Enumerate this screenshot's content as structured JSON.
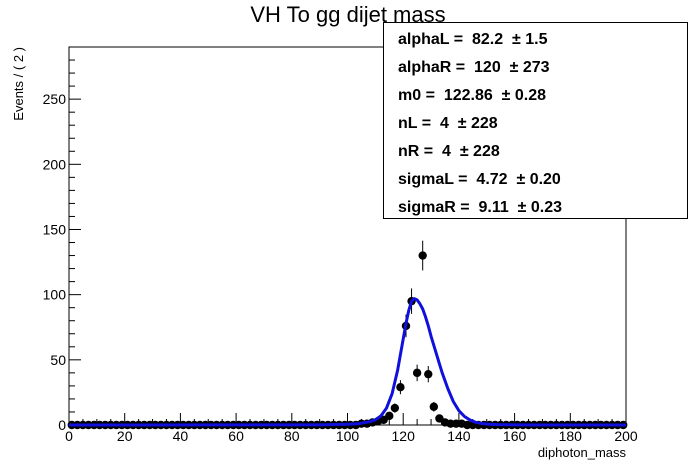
{
  "chart_data": {
    "type": "scatter",
    "title": "VH To gg dijet mass",
    "xlabel": "diphoton_mass",
    "ylabel": "Events / ( 2 )",
    "xlim": [
      0,
      200
    ],
    "ylim": [
      0,
      290
    ],
    "x_ticks": [
      "0",
      "20",
      "40",
      "60",
      "80",
      "100",
      "120",
      "140",
      "160",
      "180",
      "200"
    ],
    "y_ticks": [
      "0",
      "50",
      "100",
      "150",
      "200",
      "250"
    ],
    "series": [
      {
        "color": "#000000",
        "marker": "circle",
        "x": [
          1,
          3,
          5,
          7,
          9,
          11,
          13,
          15,
          17,
          19,
          21,
          23,
          25,
          27,
          29,
          31,
          33,
          35,
          37,
          39,
          41,
          43,
          45,
          47,
          49,
          51,
          53,
          55,
          57,
          59,
          61,
          63,
          65,
          67,
          69,
          71,
          73,
          75,
          77,
          79,
          81,
          83,
          85,
          87,
          89,
          91,
          93,
          95,
          97,
          99,
          101,
          103,
          105,
          107,
          109,
          111,
          113,
          115,
          117,
          119,
          121,
          123,
          125,
          127,
          129,
          131,
          133,
          135,
          137,
          139,
          141,
          143,
          145,
          147,
          149,
          151,
          153,
          155,
          157,
          159,
          161,
          163,
          165,
          167,
          169,
          171,
          173,
          175,
          177,
          179,
          181,
          183,
          185,
          187,
          189,
          191,
          193,
          195,
          197,
          199
        ],
        "y": [
          0,
          0,
          0,
          0,
          0,
          0,
          0,
          0,
          0,
          0,
          0,
          0,
          0,
          0,
          0,
          0,
          0,
          0,
          0,
          0,
          0,
          0,
          0,
          0,
          0,
          0,
          0,
          0,
          0,
          0,
          0,
          0,
          0,
          0,
          0,
          0,
          0,
          0,
          0,
          0,
          0,
          0,
          0,
          0,
          0,
          0,
          0,
          0,
          0,
          0,
          0,
          0,
          1,
          1,
          2,
          3,
          4,
          7,
          13,
          29,
          76,
          95,
          40,
          130,
          39,
          14,
          5,
          2,
          1,
          1,
          1,
          0,
          0,
          0,
          0,
          0,
          0,
          0,
          0,
          0,
          0,
          0,
          0,
          0,
          0,
          0,
          0,
          0,
          0,
          0,
          0,
          0,
          0,
          0,
          0,
          0,
          0,
          0,
          0,
          0
        ]
      },
      {
        "color": "#1010dd",
        "marker": "line",
        "x": [
          0,
          90,
          100,
          104,
          108,
          110,
          112,
          114,
          116,
          118,
          120,
          121,
          122,
          123,
          124,
          125,
          126,
          127,
          128,
          129,
          130,
          132,
          134,
          136,
          138,
          140,
          142,
          144,
          146,
          148,
          150,
          154,
          160,
          170,
          200
        ],
        "y": [
          0,
          0.1,
          0.5,
          1,
          2.5,
          4,
          7,
          13,
          24,
          42,
          66,
          78,
          88,
          95,
          97,
          96,
          93,
          89,
          83,
          76,
          68,
          54,
          40,
          28,
          18,
          11,
          6.5,
          3.8,
          2.1,
          1.2,
          0.7,
          0.3,
          0.1,
          0,
          0
        ]
      }
    ],
    "fit_params": [
      {
        "name": "alphaL",
        "value": "82.2",
        "error": "1.5"
      },
      {
        "name": "alphaR",
        "value": "120",
        "error": "273"
      },
      {
        "name": "m0",
        "value": "122.86",
        "error": "0.28"
      },
      {
        "name": "nL",
        "value": "4",
        "error": "228"
      },
      {
        "name": "nR",
        "value": "4",
        "error": "228"
      },
      {
        "name": "sigmaL",
        "value": "4.72",
        "error": "0.20"
      },
      {
        "name": "sigmaR",
        "value": "9.11",
        "error": "0.23"
      }
    ]
  }
}
